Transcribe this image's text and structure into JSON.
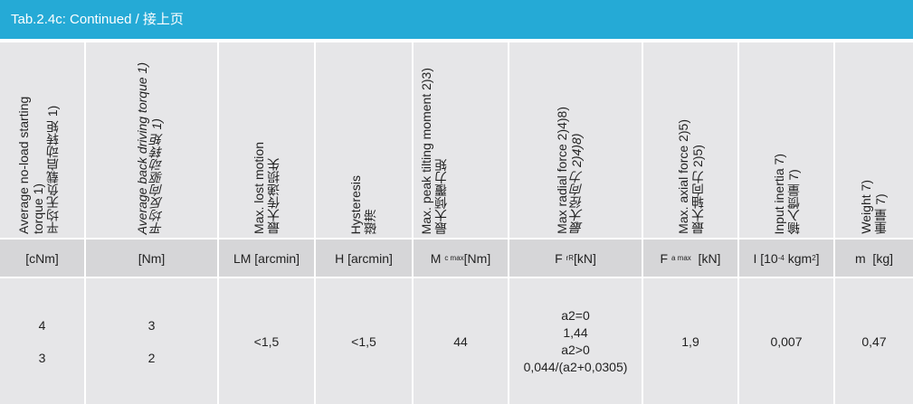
{
  "title": "Tab.2.4c: Continued / 接上页",
  "columns": [
    {
      "en": "Average no-load starting torque 1)",
      "cn": "平均无负载启动转矩 1)",
      "unit": "[cNm]",
      "values": [
        "4",
        "3"
      ]
    },
    {
      "en": "Average back driving torque 1)",
      "cn": "平均反向驱动转矩 1)",
      "unit": "[Nm]",
      "values": [
        "3",
        "2"
      ]
    },
    {
      "en": "Max. lost motion",
      "cn": "最大传递损失",
      "unit": "LM [arcmin]",
      "values": [
        "<1,5"
      ]
    },
    {
      "en": "Hysteresis",
      "cn": "磁滞",
      "unit": "H [arcmin]",
      "values": [
        "<1,5"
      ]
    },
    {
      "en": "Max. peak tilting moment 2)3)",
      "cn": "最大倾覆力矩",
      "unit_main": "M",
      "unit_sub": "c max",
      "unit_rest": " [Nm]",
      "values": [
        "44"
      ]
    },
    {
      "en": "Max radial force 2)4)8)",
      "cn": "最大径向力 2)4)8)",
      "unit_main": "F",
      "unit_sub": "rR",
      "unit_rest": " [kN]",
      "values": [
        "a2=0",
        "1,44",
        "a2>0",
        "0,044/(a2+0,0305)"
      ]
    },
    {
      "en": "Max. axial force 2)5)",
      "cn": "最大轴向力 2)5)",
      "unit_main": "F",
      "unit_sub": "a max",
      "unit_rest": "  [kN]",
      "values": [
        "1,9"
      ]
    },
    {
      "en": "Input inertia 7)",
      "cn": "输入惯量 7)",
      "unit_pre": "I [10",
      "unit_sup": "-4",
      "unit_mid": " kgm",
      "unit_sup2": "2",
      "unit_end": "]",
      "values": [
        "0,007"
      ]
    },
    {
      "en": "Weight 7)",
      "cn": "重量 7)",
      "unit": "m  [kg]",
      "values": [
        "0,47"
      ]
    }
  ]
}
